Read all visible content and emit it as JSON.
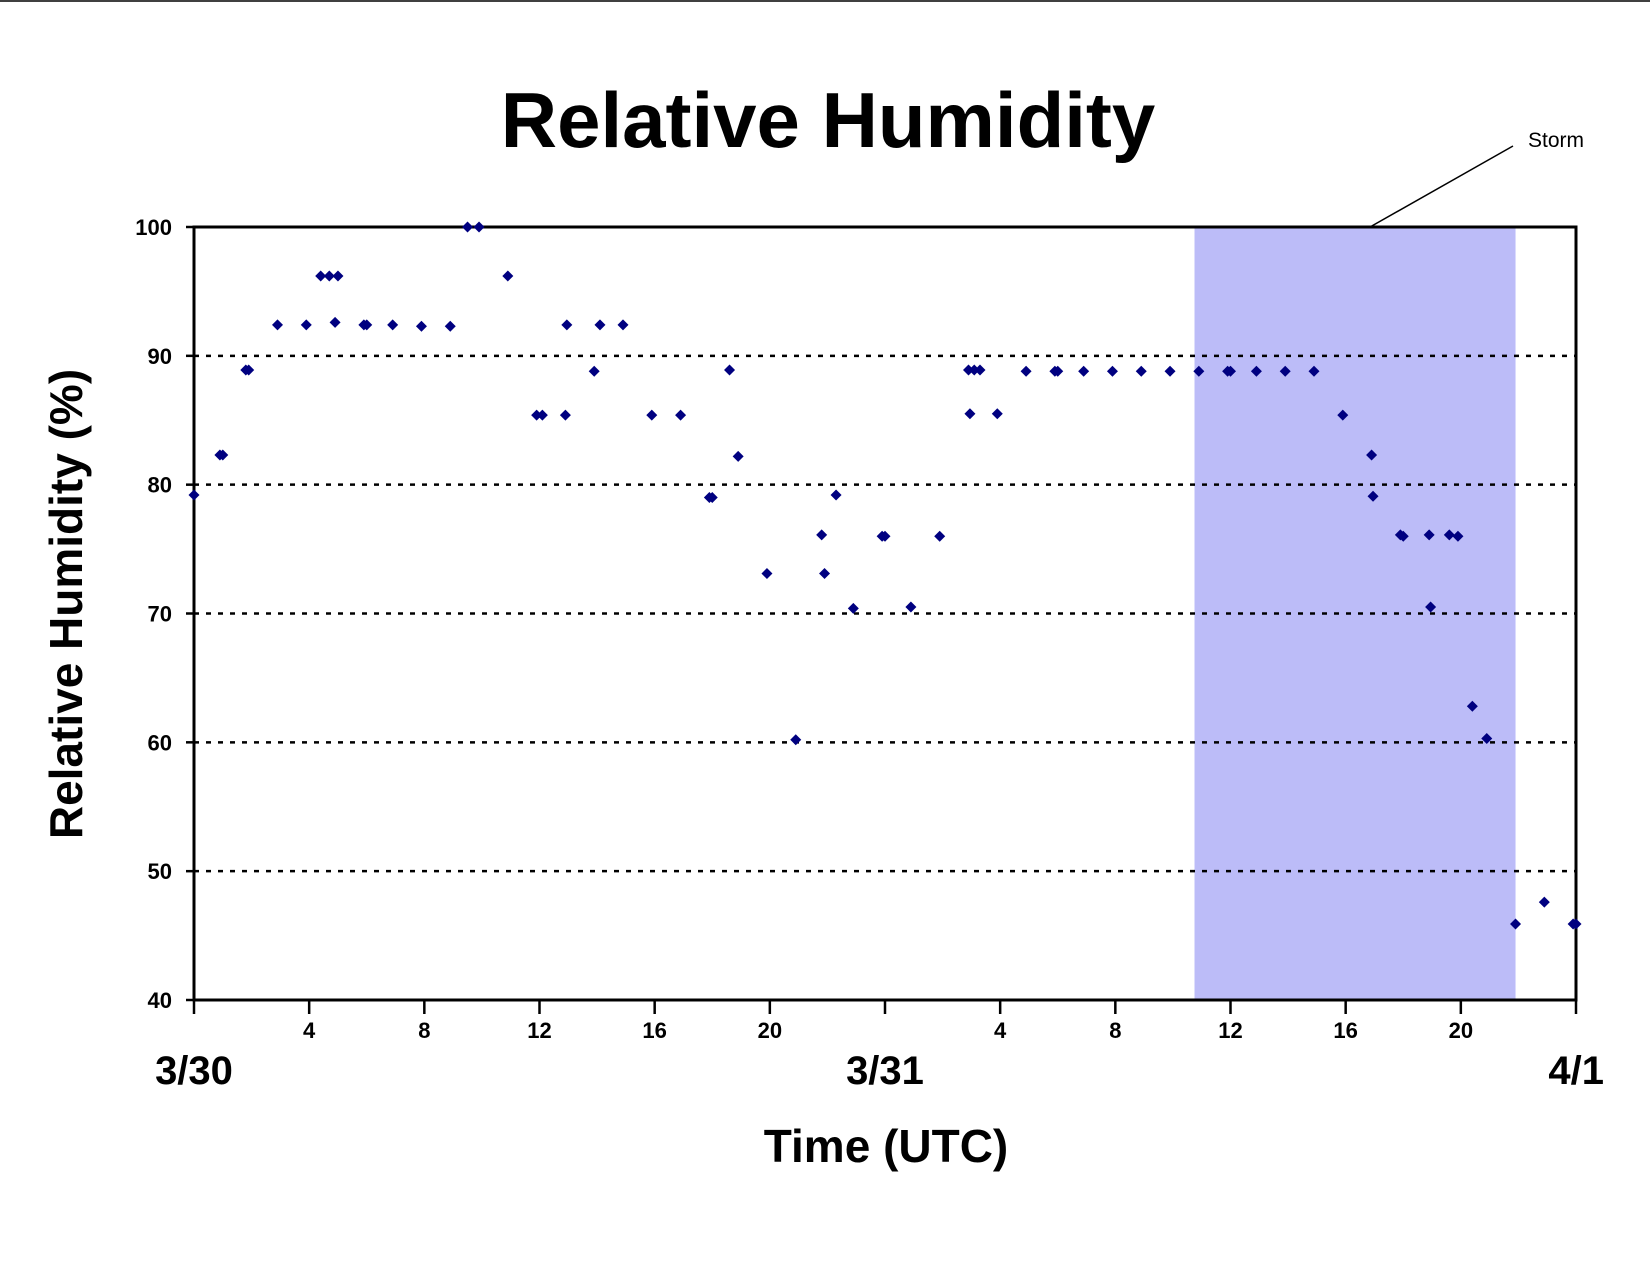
{
  "chart_data": {
    "type": "scatter",
    "title": "Relative Humidity",
    "xlabel": "Time (UTC)",
    "ylabel": "Relative Humidity (%)",
    "ylim": [
      40,
      100
    ],
    "xlim": [
      "3/30 00:00",
      "4/1 00:00"
    ],
    "y_ticks": [
      40,
      50,
      60,
      70,
      80,
      90,
      100
    ],
    "x_tick_hours": [
      0,
      4,
      8,
      12,
      16,
      20,
      24,
      28,
      32,
      36,
      40,
      44,
      48
    ],
    "x_tick_labels": [
      "",
      "4",
      "8",
      "12",
      "16",
      "20",
      "",
      "4",
      "8",
      "12",
      "16",
      "20",
      ""
    ],
    "date_labels": [
      {
        "label": "3/30",
        "hour": 0
      },
      {
        "label": "3/31",
        "hour": 24
      },
      {
        "label": "4/1",
        "hour": 48
      }
    ],
    "grid": "horizontal dotted",
    "marker_color": "#000080",
    "storm_band": {
      "label": "Storm",
      "start_hour": 34.75,
      "end_hour": 45.9,
      "color": "#bcbcf8"
    },
    "series": [
      {
        "points": [
          [
            0.0,
            79.2
          ],
          [
            0.9,
            82.3
          ],
          [
            1.0,
            82.3
          ],
          [
            1.8,
            88.9
          ],
          [
            1.9,
            88.9
          ],
          [
            2.9,
            92.4
          ],
          [
            3.9,
            92.4
          ],
          [
            4.4,
            96.2
          ],
          [
            4.7,
            96.2
          ],
          [
            5.0,
            96.2
          ],
          [
            4.9,
            92.6
          ],
          [
            5.9,
            92.4
          ],
          [
            6.0,
            92.4
          ],
          [
            6.9,
            92.4
          ],
          [
            7.9,
            92.3
          ],
          [
            8.9,
            92.3
          ],
          [
            9.5,
            100
          ],
          [
            9.9,
            100
          ],
          [
            10.9,
            96.2
          ],
          [
            11.9,
            85.4
          ],
          [
            12.1,
            85.4
          ],
          [
            12.9,
            85.4
          ],
          [
            12.95,
            92.4
          ],
          [
            13.9,
            88.8
          ],
          [
            14.1,
            92.4
          ],
          [
            14.9,
            92.4
          ],
          [
            15.9,
            85.4
          ],
          [
            16.9,
            85.4
          ],
          [
            17.9,
            79.0
          ],
          [
            18.0,
            79.0
          ],
          [
            18.6,
            88.9
          ],
          [
            18.9,
            82.2
          ],
          [
            19.9,
            73.1
          ],
          [
            20.9,
            60.2
          ],
          [
            21.8,
            76.1
          ],
          [
            21.9,
            73.1
          ],
          [
            22.3,
            79.2
          ],
          [
            22.9,
            70.4
          ],
          [
            23.9,
            76.0
          ],
          [
            24.0,
            76.0
          ],
          [
            24.9,
            70.5
          ],
          [
            25.9,
            76.0
          ],
          [
            26.9,
            88.9
          ],
          [
            27.1,
            88.9
          ],
          [
            27.3,
            88.9
          ],
          [
            26.95,
            85.5
          ],
          [
            27.9,
            85.5
          ],
          [
            28.9,
            88.8
          ],
          [
            29.9,
            88.8
          ],
          [
            30.0,
            88.8
          ],
          [
            30.9,
            88.8
          ],
          [
            31.9,
            88.8
          ],
          [
            32.9,
            88.8
          ],
          [
            33.9,
            88.8
          ],
          [
            34.9,
            88.8
          ],
          [
            35.9,
            88.8
          ],
          [
            36.0,
            88.8
          ],
          [
            36.9,
            88.8
          ],
          [
            37.9,
            88.8
          ],
          [
            38.9,
            88.8
          ],
          [
            39.9,
            85.4
          ],
          [
            40.9,
            82.3
          ],
          [
            40.95,
            79.1
          ],
          [
            41.9,
            76.1
          ],
          [
            42.0,
            76.0
          ],
          [
            42.9,
            76.1
          ],
          [
            42.95,
            70.5
          ],
          [
            43.6,
            76.1
          ],
          [
            43.9,
            76.0
          ],
          [
            44.4,
            62.8
          ],
          [
            44.9,
            60.3
          ],
          [
            45.9,
            45.9
          ],
          [
            46.9,
            47.6
          ],
          [
            47.9,
            45.9
          ],
          [
            48.0,
            45.9
          ]
        ]
      }
    ]
  }
}
